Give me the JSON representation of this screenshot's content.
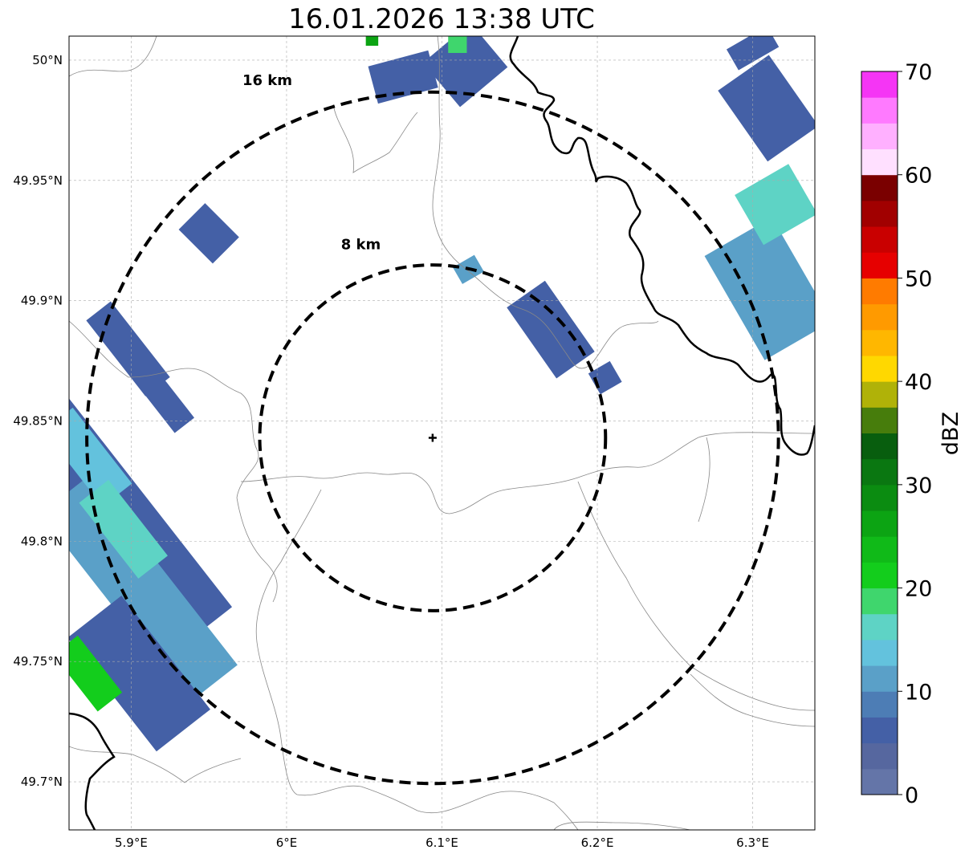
{
  "title": "16.01.2026 13:38 UTC",
  "map": {
    "lon_range": [
      5.86,
      6.34
    ],
    "lat_range": [
      49.68,
      50.01
    ],
    "lon_ticks": [
      {
        "value": 5.9,
        "label": "5.9°E"
      },
      {
        "value": 6.0,
        "label": "6°E"
      },
      {
        "value": 6.1,
        "label": "6.1°E"
      },
      {
        "value": 6.2,
        "label": "6.2°E"
      },
      {
        "value": 6.3,
        "label": "6.3°E"
      }
    ],
    "lat_ticks": [
      {
        "value": 50.0,
        "label": "50°N"
      },
      {
        "value": 49.95,
        "label": "49.95°N"
      },
      {
        "value": 49.9,
        "label": "49.9°N"
      },
      {
        "value": 49.85,
        "label": "49.85°N"
      },
      {
        "value": 49.8,
        "label": "49.8°N"
      },
      {
        "value": 49.75,
        "label": "49.75°N"
      },
      {
        "value": 49.7,
        "label": "49.7°N"
      }
    ],
    "radar_center": {
      "lon": 6.094,
      "lat": 49.843
    },
    "range_rings": [
      {
        "radius_km": 8,
        "label": "8 km"
      },
      {
        "radius_km": 16,
        "label": "16 km"
      }
    ],
    "echo_cells": [
      {
        "lon": 5.888,
        "lat": 49.81,
        "dlon": 0.025,
        "dlat": 0.06,
        "angle": -38,
        "dbz": 6
      },
      {
        "lon": 5.905,
        "lat": 49.78,
        "dlon": 0.02,
        "dlat": 0.05,
        "angle": -38,
        "dbz": 12
      },
      {
        "lon": 5.872,
        "lat": 49.835,
        "dlon": 0.012,
        "dlat": 0.02,
        "angle": -38,
        "dbz": 14
      },
      {
        "lon": 5.895,
        "lat": 49.805,
        "dlon": 0.012,
        "dlat": 0.02,
        "angle": -38,
        "dbz": 15
      },
      {
        "lon": 5.905,
        "lat": 49.745,
        "dlon": 0.022,
        "dlat": 0.03,
        "angle": -38,
        "dbz": 5
      },
      {
        "lon": 5.872,
        "lat": 49.745,
        "dlon": 0.01,
        "dlat": 0.015,
        "angle": -38,
        "dbz": 20
      },
      {
        "lon": 5.898,
        "lat": 49.88,
        "dlon": 0.01,
        "dlat": 0.02,
        "angle": -38,
        "dbz": 5
      },
      {
        "lon": 5.92,
        "lat": 49.86,
        "dlon": 0.008,
        "dlat": 0.015,
        "angle": -38,
        "dbz": 6
      },
      {
        "lon": 5.95,
        "lat": 49.928,
        "dlon": 0.012,
        "dlat": 0.01,
        "angle": -45,
        "dbz": 6
      },
      {
        "lon": 6.075,
        "lat": 49.993,
        "dlon": 0.02,
        "dlat": 0.008,
        "angle": -15,
        "dbz": 5
      },
      {
        "lon": 6.115,
        "lat": 49.998,
        "dlon": 0.02,
        "dlat": 0.012,
        "angle": -40,
        "dbz": 6
      },
      {
        "lon": 6.11,
        "lat": 50.007,
        "dlon": 0.006,
        "dlat": 0.004,
        "angle": 0,
        "dbz": 18
      },
      {
        "lon": 6.055,
        "lat": 50.008,
        "dlon": 0.004,
        "dlat": 0.002,
        "angle": 0,
        "dbz": 25
      },
      {
        "lon": 6.17,
        "lat": 49.888,
        "dlon": 0.015,
        "dlat": 0.018,
        "angle": -35,
        "dbz": 5
      },
      {
        "lon": 6.117,
        "lat": 49.913,
        "dlon": 0.008,
        "dlat": 0.004,
        "angle": -30,
        "dbz": 12
      },
      {
        "lon": 6.205,
        "lat": 49.868,
        "dlon": 0.008,
        "dlat": 0.005,
        "angle": -30,
        "dbz": 5
      },
      {
        "lon": 6.31,
        "lat": 49.905,
        "dlon": 0.025,
        "dlat": 0.025,
        "angle": -30,
        "dbz": 10
      },
      {
        "lon": 6.315,
        "lat": 49.94,
        "dlon": 0.02,
        "dlat": 0.012,
        "angle": -30,
        "dbz": 15
      },
      {
        "lon": 6.31,
        "lat": 49.98,
        "dlon": 0.02,
        "dlat": 0.018,
        "angle": -35,
        "dbz": 5
      },
      {
        "lon": 6.3,
        "lat": 50.005,
        "dlon": 0.015,
        "dlat": 0.005,
        "angle": -30,
        "dbz": 5
      }
    ]
  },
  "colorbar": {
    "label": "dBZ",
    "min": 0,
    "max": 70,
    "ticks": [
      "0",
      "10",
      "20",
      "30",
      "40",
      "50",
      "60",
      "70"
    ],
    "colors": [
      "#6475a8",
      "#56679f",
      "#4460a6",
      "#4d7db5",
      "#5aa0c8",
      "#63c2dd",
      "#5ed3c5",
      "#3fd66d",
      "#13cd1c",
      "#10ba18",
      "#0ca413",
      "#0b8c11",
      "#0a7711",
      "#085e0e",
      "#477d0c",
      "#b0b208",
      "#ffd800",
      "#ffb700",
      "#ff9a00",
      "#ff7b00",
      "#e60000",
      "#c90000",
      "#a10000",
      "#7a0000",
      "#ffe0ff",
      "#ffb0ff",
      "#ff7aff",
      "#f535f5"
    ]
  }
}
